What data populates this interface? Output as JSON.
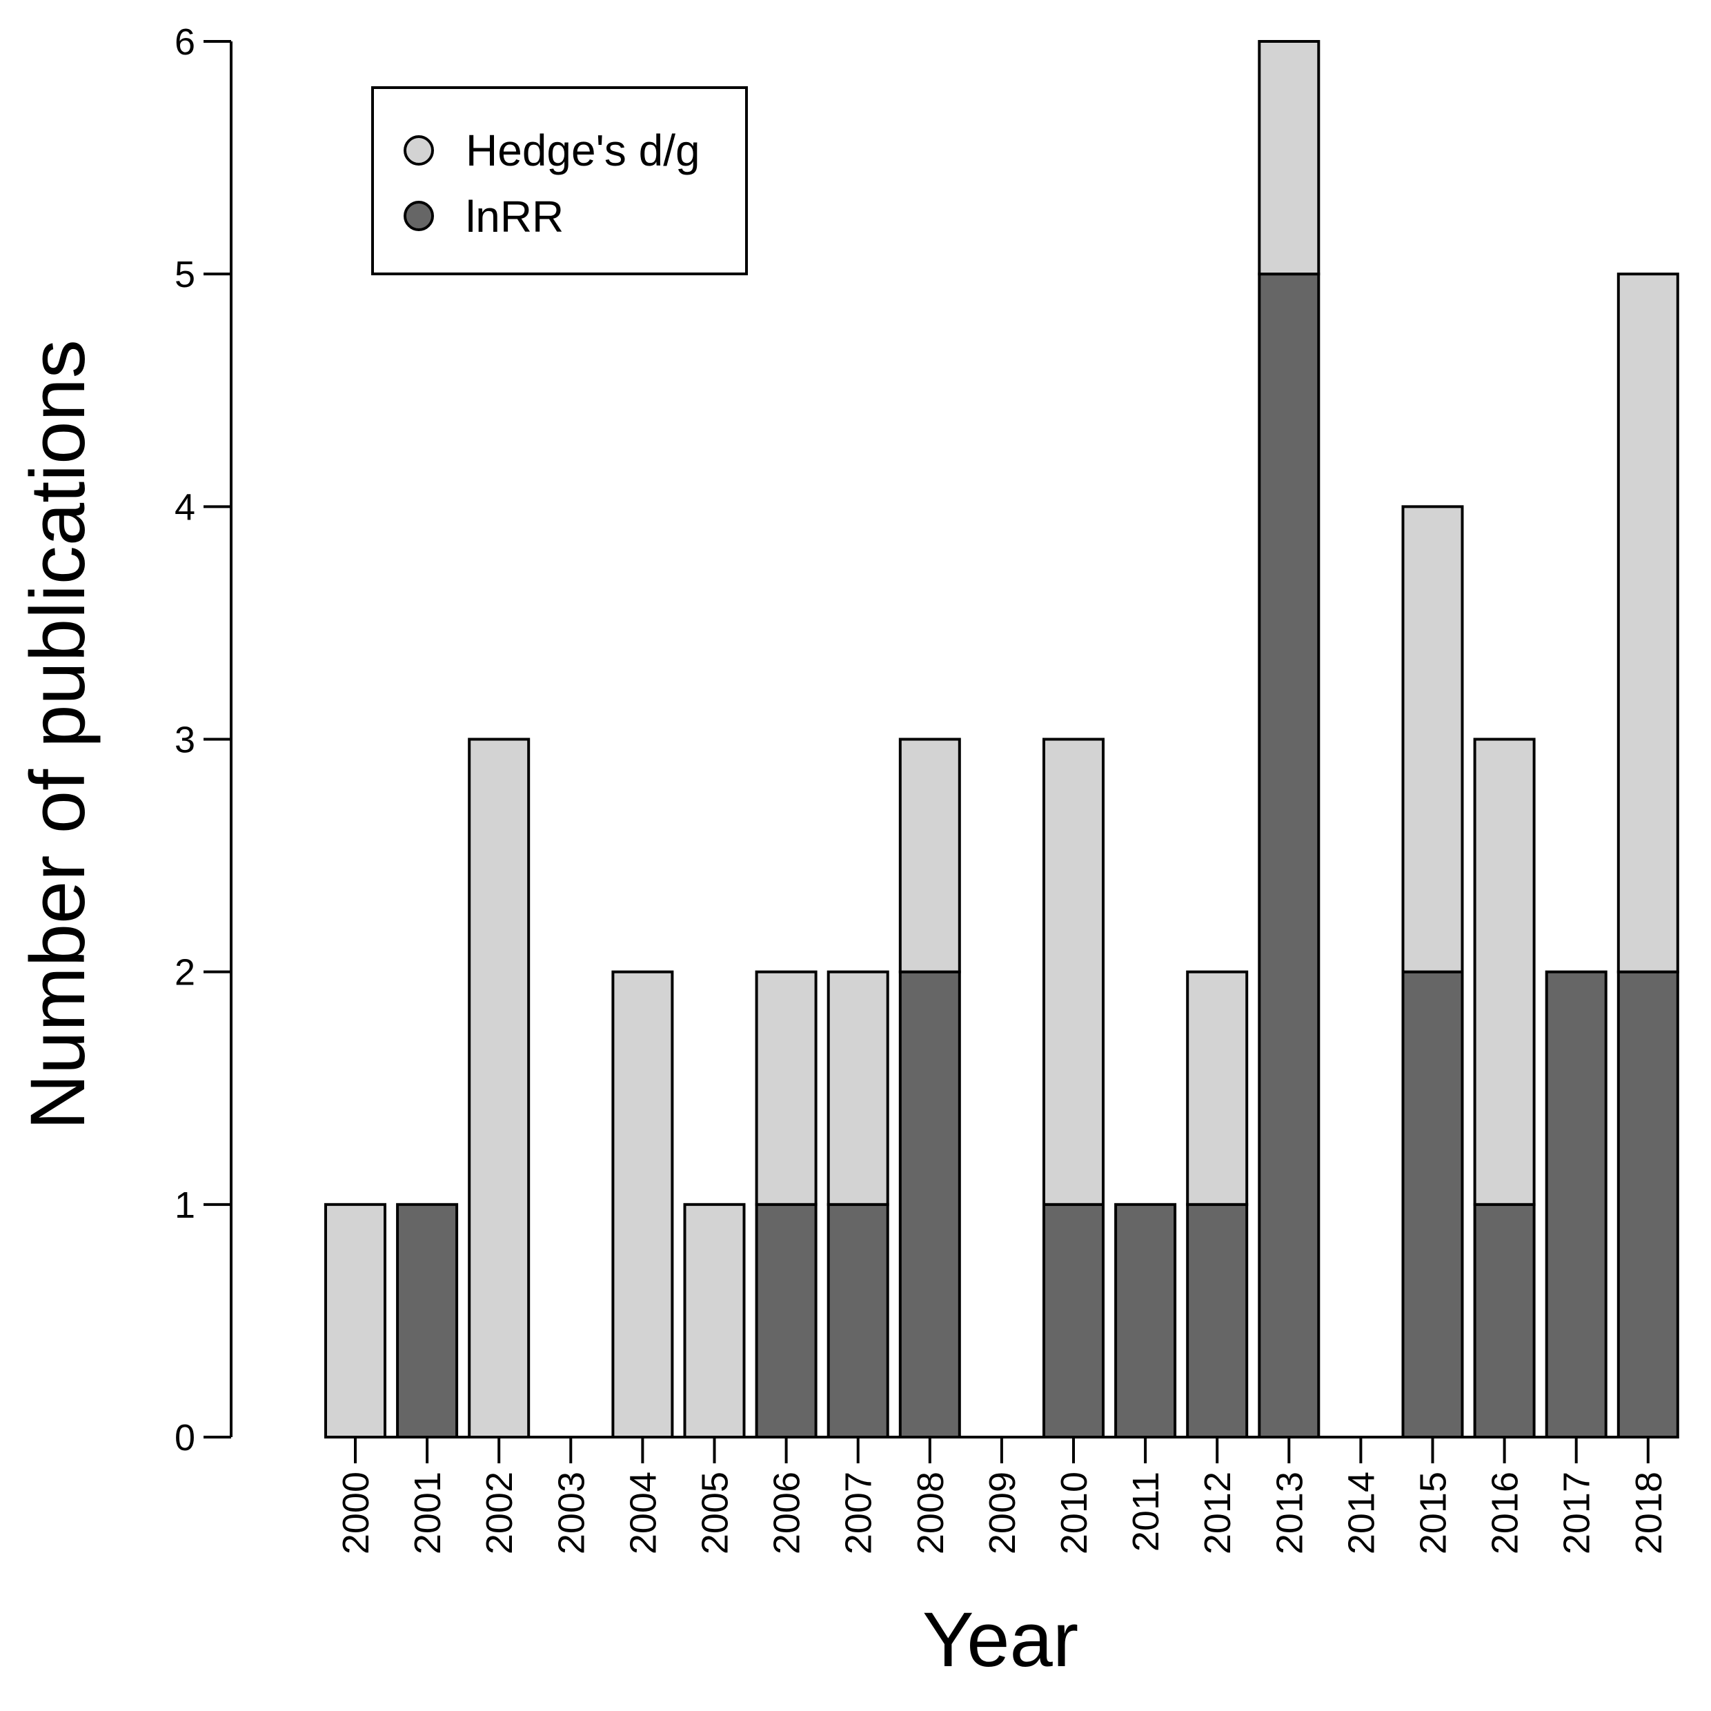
{
  "chart_data": {
    "type": "bar",
    "stacked": true,
    "xlabel": "Year",
    "ylabel": "Number of publications",
    "ylim": [
      0,
      6
    ],
    "yticks": [
      0,
      1,
      2,
      3,
      4,
      5,
      6
    ],
    "grid": false,
    "legend_position": "top-left",
    "categories": [
      "2000",
      "2001",
      "2002",
      "2003",
      "2004",
      "2005",
      "2006",
      "2007",
      "2008",
      "2009",
      "2010",
      "2011",
      "2012",
      "2013",
      "2014",
      "2015",
      "2016",
      "2017",
      "2018"
    ],
    "series": [
      {
        "name": "lnRR",
        "color": "#666666",
        "values": [
          0,
          1,
          0,
          0,
          0,
          0,
          1,
          1,
          2,
          0,
          1,
          1,
          1,
          5,
          0,
          2,
          1,
          2,
          2
        ]
      },
      {
        "name": "Hedge's d/g",
        "color": "#d3d3d3",
        "values": [
          1,
          0,
          3,
          0,
          2,
          1,
          1,
          1,
          1,
          0,
          2,
          0,
          1,
          1,
          0,
          2,
          2,
          0,
          3
        ]
      }
    ]
  }
}
